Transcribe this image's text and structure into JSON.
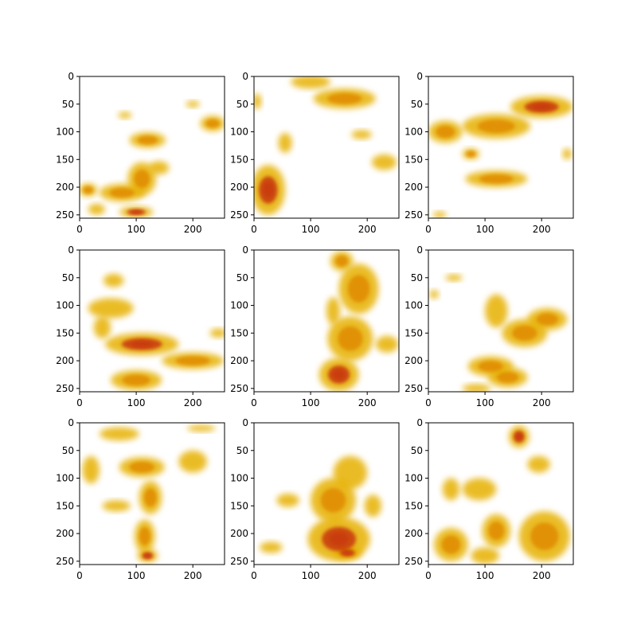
{
  "chart_data": {
    "type": "heatmap",
    "layout": "3x3 grid of radar-echo image panels",
    "colormap": {
      "background": "#ffffff",
      "low": "#e6b000",
      "mid": "#e08a00",
      "high": "#c8380a"
    },
    "panels": [
      {
        "xlim": [
          0,
          256
        ],
        "ylim": [
          256,
          0
        ],
        "xticks": [
          0,
          100,
          200
        ],
        "yticks": [
          0,
          50,
          100,
          150,
          200,
          250
        ],
        "blobs": [
          {
            "x": 120,
            "y": 115,
            "rx": 32,
            "ry": 14,
            "v": 0.45
          },
          {
            "x": 235,
            "y": 85,
            "rx": 22,
            "ry": 14,
            "v": 0.6
          },
          {
            "x": 75,
            "y": 210,
            "rx": 40,
            "ry": 16,
            "v": 0.55
          },
          {
            "x": 110,
            "y": 185,
            "rx": 25,
            "ry": 30,
            "v": 0.5
          },
          {
            "x": 15,
            "y": 205,
            "rx": 16,
            "ry": 12,
            "v": 0.55
          },
          {
            "x": 140,
            "y": 165,
            "rx": 18,
            "ry": 12,
            "v": 0.35
          },
          {
            "x": 80,
            "y": 70,
            "rx": 12,
            "ry": 6,
            "v": 0.2
          },
          {
            "x": 200,
            "y": 50,
            "rx": 12,
            "ry": 6,
            "v": 0.2
          },
          {
            "x": 100,
            "y": 245,
            "rx": 30,
            "ry": 10,
            "v": 0.8
          },
          {
            "x": 30,
            "y": 240,
            "rx": 15,
            "ry": 10,
            "v": 0.4
          }
        ]
      },
      {
        "xlim": [
          0,
          256
        ],
        "ylim": [
          256,
          0
        ],
        "xticks": [
          0,
          100,
          200
        ],
        "yticks": [
          0,
          50,
          100,
          150,
          200,
          250
        ],
        "blobs": [
          {
            "x": 25,
            "y": 205,
            "rx": 30,
            "ry": 45,
            "v": 0.75
          },
          {
            "x": 160,
            "y": 40,
            "rx": 55,
            "ry": 18,
            "v": 0.45
          },
          {
            "x": 100,
            "y": 10,
            "rx": 35,
            "ry": 12,
            "v": 0.35
          },
          {
            "x": 230,
            "y": 155,
            "rx": 22,
            "ry": 14,
            "v": 0.3
          },
          {
            "x": 55,
            "y": 120,
            "rx": 12,
            "ry": 18,
            "v": 0.35
          },
          {
            "x": 5,
            "y": 45,
            "rx": 8,
            "ry": 14,
            "v": 0.3
          },
          {
            "x": 190,
            "y": 105,
            "rx": 18,
            "ry": 8,
            "v": 0.3
          }
        ]
      },
      {
        "xlim": [
          0,
          256
        ],
        "ylim": [
          256,
          0
        ],
        "xticks": [
          0,
          100,
          200
        ],
        "yticks": [
          0,
          50,
          100,
          150,
          200,
          250
        ],
        "blobs": [
          {
            "x": 200,
            "y": 55,
            "rx": 55,
            "ry": 20,
            "v": 0.75
          },
          {
            "x": 120,
            "y": 90,
            "rx": 60,
            "ry": 22,
            "v": 0.5
          },
          {
            "x": 30,
            "y": 100,
            "rx": 30,
            "ry": 20,
            "v": 0.45
          },
          {
            "x": 120,
            "y": 185,
            "rx": 55,
            "ry": 15,
            "v": 0.45
          },
          {
            "x": 75,
            "y": 140,
            "rx": 15,
            "ry": 10,
            "v": 0.6
          },
          {
            "x": 245,
            "y": 140,
            "rx": 8,
            "ry": 10,
            "v": 0.4
          },
          {
            "x": 20,
            "y": 250,
            "rx": 12,
            "ry": 6,
            "v": 0.4
          }
        ]
      },
      {
        "xlim": [
          0,
          256
        ],
        "ylim": [
          256,
          0
        ],
        "xticks": [
          0,
          100,
          200
        ],
        "yticks": [
          0,
          50,
          100,
          150,
          200,
          250
        ],
        "blobs": [
          {
            "x": 110,
            "y": 170,
            "rx": 65,
            "ry": 20,
            "v": 0.75
          },
          {
            "x": 200,
            "y": 200,
            "rx": 55,
            "ry": 15,
            "v": 0.5
          },
          {
            "x": 55,
            "y": 105,
            "rx": 40,
            "ry": 18,
            "v": 0.4
          },
          {
            "x": 60,
            "y": 55,
            "rx": 18,
            "ry": 12,
            "v": 0.35
          },
          {
            "x": 100,
            "y": 235,
            "rx": 45,
            "ry": 18,
            "v": 0.55
          },
          {
            "x": 245,
            "y": 150,
            "rx": 15,
            "ry": 8,
            "v": 0.3
          },
          {
            "x": 40,
            "y": 140,
            "rx": 15,
            "ry": 20,
            "v": 0.4
          }
        ]
      },
      {
        "xlim": [
          0,
          256
        ],
        "ylim": [
          256,
          0
        ],
        "xticks": [
          0,
          100,
          200
        ],
        "yticks": [
          0,
          50,
          100,
          150,
          200,
          250
        ],
        "blobs": [
          {
            "x": 185,
            "y": 70,
            "rx": 35,
            "ry": 45,
            "v": 0.6
          },
          {
            "x": 170,
            "y": 160,
            "rx": 40,
            "ry": 40,
            "v": 0.45
          },
          {
            "x": 150,
            "y": 225,
            "rx": 35,
            "ry": 30,
            "v": 0.7
          },
          {
            "x": 155,
            "y": 20,
            "rx": 20,
            "ry": 18,
            "v": 0.45
          },
          {
            "x": 235,
            "y": 170,
            "rx": 20,
            "ry": 15,
            "v": 0.35
          },
          {
            "x": 140,
            "y": 110,
            "rx": 12,
            "ry": 25,
            "v": 0.35
          }
        ]
      },
      {
        "xlim": [
          0,
          256
        ],
        "ylim": [
          256,
          0
        ],
        "xticks": [
          0,
          100,
          200
        ],
        "yticks": [
          0,
          50,
          100,
          150,
          200,
          250
        ],
        "blobs": [
          {
            "x": 170,
            "y": 150,
            "rx": 40,
            "ry": 25,
            "v": 0.6
          },
          {
            "x": 210,
            "y": 125,
            "rx": 35,
            "ry": 20,
            "v": 0.45
          },
          {
            "x": 110,
            "y": 210,
            "rx": 40,
            "ry": 18,
            "v": 0.45
          },
          {
            "x": 120,
            "y": 110,
            "rx": 20,
            "ry": 30,
            "v": 0.35
          },
          {
            "x": 140,
            "y": 230,
            "rx": 35,
            "ry": 18,
            "v": 0.5
          },
          {
            "x": 45,
            "y": 50,
            "rx": 15,
            "ry": 6,
            "v": 0.3
          },
          {
            "x": 85,
            "y": 250,
            "rx": 25,
            "ry": 8,
            "v": 0.35
          },
          {
            "x": 10,
            "y": 80,
            "rx": 8,
            "ry": 8,
            "v": 0.3
          }
        ]
      },
      {
        "xlim": [
          0,
          256
        ],
        "ylim": [
          256,
          0
        ],
        "xticks": [
          0,
          100,
          200
        ],
        "yticks": [
          0,
          50,
          100,
          150,
          200,
          250
        ],
        "blobs": [
          {
            "x": 110,
            "y": 80,
            "rx": 40,
            "ry": 18,
            "v": 0.45
          },
          {
            "x": 125,
            "y": 135,
            "rx": 20,
            "ry": 30,
            "v": 0.45
          },
          {
            "x": 115,
            "y": 205,
            "rx": 18,
            "ry": 30,
            "v": 0.5
          },
          {
            "x": 120,
            "y": 240,
            "rx": 18,
            "ry": 12,
            "v": 0.75
          },
          {
            "x": 70,
            "y": 20,
            "rx": 35,
            "ry": 12,
            "v": 0.35
          },
          {
            "x": 20,
            "y": 85,
            "rx": 15,
            "ry": 25,
            "v": 0.3
          },
          {
            "x": 200,
            "y": 70,
            "rx": 25,
            "ry": 20,
            "v": 0.4
          },
          {
            "x": 65,
            "y": 150,
            "rx": 25,
            "ry": 10,
            "v": 0.35
          },
          {
            "x": 215,
            "y": 10,
            "rx": 25,
            "ry": 6,
            "v": 0.25
          }
        ]
      },
      {
        "xlim": [
          0,
          256
        ],
        "ylim": [
          256,
          0
        ],
        "xticks": [
          0,
          100,
          200
        ],
        "yticks": [
          0,
          50,
          100,
          150,
          200,
          250
        ],
        "blobs": [
          {
            "x": 150,
            "y": 210,
            "rx": 55,
            "ry": 40,
            "v": 0.7
          },
          {
            "x": 140,
            "y": 140,
            "rx": 40,
            "ry": 40,
            "v": 0.45
          },
          {
            "x": 170,
            "y": 90,
            "rx": 30,
            "ry": 30,
            "v": 0.4
          },
          {
            "x": 165,
            "y": 235,
            "rx": 25,
            "ry": 12,
            "v": 0.85
          },
          {
            "x": 60,
            "y": 140,
            "rx": 20,
            "ry": 12,
            "v": 0.25
          },
          {
            "x": 30,
            "y": 225,
            "rx": 20,
            "ry": 10,
            "v": 0.35
          },
          {
            "x": 210,
            "y": 150,
            "rx": 15,
            "ry": 20,
            "v": 0.35
          }
        ]
      },
      {
        "xlim": [
          0,
          256
        ],
        "ylim": [
          256,
          0
        ],
        "xticks": [
          0,
          100,
          200
        ],
        "yticks": [
          0,
          50,
          100,
          150,
          200,
          250
        ],
        "blobs": [
          {
            "x": 205,
            "y": 205,
            "rx": 45,
            "ry": 45,
            "v": 0.5
          },
          {
            "x": 160,
            "y": 25,
            "rx": 18,
            "ry": 20,
            "v": 0.7
          },
          {
            "x": 120,
            "y": 195,
            "rx": 25,
            "ry": 30,
            "v": 0.55
          },
          {
            "x": 40,
            "y": 220,
            "rx": 30,
            "ry": 30,
            "v": 0.45
          },
          {
            "x": 100,
            "y": 240,
            "rx": 25,
            "ry": 15,
            "v": 0.4
          },
          {
            "x": 90,
            "y": 120,
            "rx": 30,
            "ry": 20,
            "v": 0.3
          },
          {
            "x": 195,
            "y": 75,
            "rx": 20,
            "ry": 15,
            "v": 0.3
          },
          {
            "x": 40,
            "y": 120,
            "rx": 15,
            "ry": 20,
            "v": 0.3
          }
        ]
      }
    ]
  }
}
